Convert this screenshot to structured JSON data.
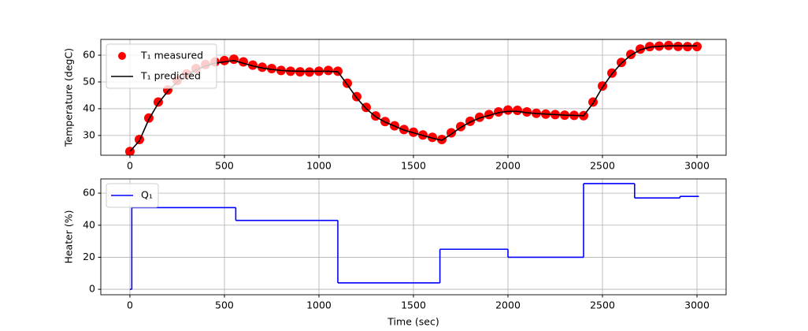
{
  "chart_data": [
    {
      "type": "line",
      "ylabel": "Temperature (degC)",
      "x": [
        0,
        50,
        100,
        150,
        200,
        250,
        300,
        350,
        400,
        450,
        500,
        550,
        600,
        650,
        700,
        750,
        800,
        850,
        900,
        950,
        1000,
        1050,
        1100,
        1150,
        1200,
        1250,
        1300,
        1350,
        1400,
        1450,
        1500,
        1550,
        1600,
        1650,
        1700,
        1750,
        1800,
        1850,
        1900,
        1950,
        2000,
        2050,
        2100,
        2150,
        2200,
        2250,
        2300,
        2350,
        2400,
        2450,
        2500,
        2550,
        2600,
        2650,
        2700,
        2750,
        2800,
        2850,
        2900,
        2950,
        3000
      ],
      "series": [
        {
          "name": "T₁ measured",
          "type": "scatter",
          "color": "#ff0000",
          "values": [
            24,
            28.5,
            36.5,
            42.5,
            47,
            50.5,
            53,
            55,
            56.5,
            57.5,
            58,
            58.5,
            57.5,
            56.3,
            55.5,
            55,
            54.3,
            54,
            53.8,
            53.7,
            54,
            54.3,
            54,
            49.5,
            44.5,
            40.5,
            37.3,
            35.2,
            33.6,
            32.2,
            31.2,
            30.2,
            29.3,
            28.5,
            31,
            33.3,
            35.3,
            36.8,
            37.8,
            38.8,
            39.5,
            39.4,
            38.8,
            38.3,
            38,
            37.8,
            37.6,
            37.5,
            37.4,
            42.5,
            48.5,
            53.3,
            57.3,
            60.3,
            62.3,
            63.2,
            63.4,
            63.6,
            63.3,
            63.2,
            63.2
          ]
        },
        {
          "name": "T₁ predicted",
          "type": "line",
          "color": "#000000",
          "values": [
            24,
            28,
            36,
            42,
            46.5,
            50,
            52.5,
            54.5,
            56,
            57,
            57.5,
            58,
            57,
            56,
            55.2,
            54.7,
            54.3,
            54.1,
            54,
            54,
            54,
            54,
            53.8,
            49,
            44,
            40,
            37,
            35,
            33.5,
            32,
            31,
            30,
            29,
            28.2,
            30.5,
            33,
            35,
            36.5,
            37.5,
            38.5,
            39,
            39,
            38.5,
            38.2,
            38,
            37.8,
            37.6,
            37.5,
            37.4,
            42,
            48,
            53,
            57,
            60,
            62,
            63,
            63.3,
            63.5,
            63.5,
            63.5,
            63.5
          ]
        }
      ],
      "xlim": [
        -154,
        3154
      ],
      "ylim": [
        22.6,
        65.9
      ],
      "xticks": [
        0,
        500,
        1000,
        1500,
        2000,
        2500,
        3000
      ],
      "yticks": [
        30,
        40,
        50,
        60
      ],
      "grid": true,
      "legend": "upper left"
    },
    {
      "type": "step",
      "ylabel": "Heater (%)",
      "xlabel": "Time (sec)",
      "x": [
        0,
        10,
        560,
        1100,
        1640,
        2000,
        2400,
        2670,
        2910,
        3010
      ],
      "series": [
        {
          "name": "Q₁",
          "type": "step",
          "color": "#0000ff",
          "values": [
            0,
            51,
            43,
            4,
            25,
            20,
            66,
            57,
            58,
            58
          ]
        }
      ],
      "xlim": [
        -154,
        3154
      ],
      "ylim": [
        -3.4,
        68.9
      ],
      "xticks": [
        0,
        500,
        1000,
        1500,
        2000,
        2500,
        3000
      ],
      "yticks": [
        0,
        20,
        40,
        60
      ],
      "grid": true,
      "legend": "upper left"
    }
  ]
}
